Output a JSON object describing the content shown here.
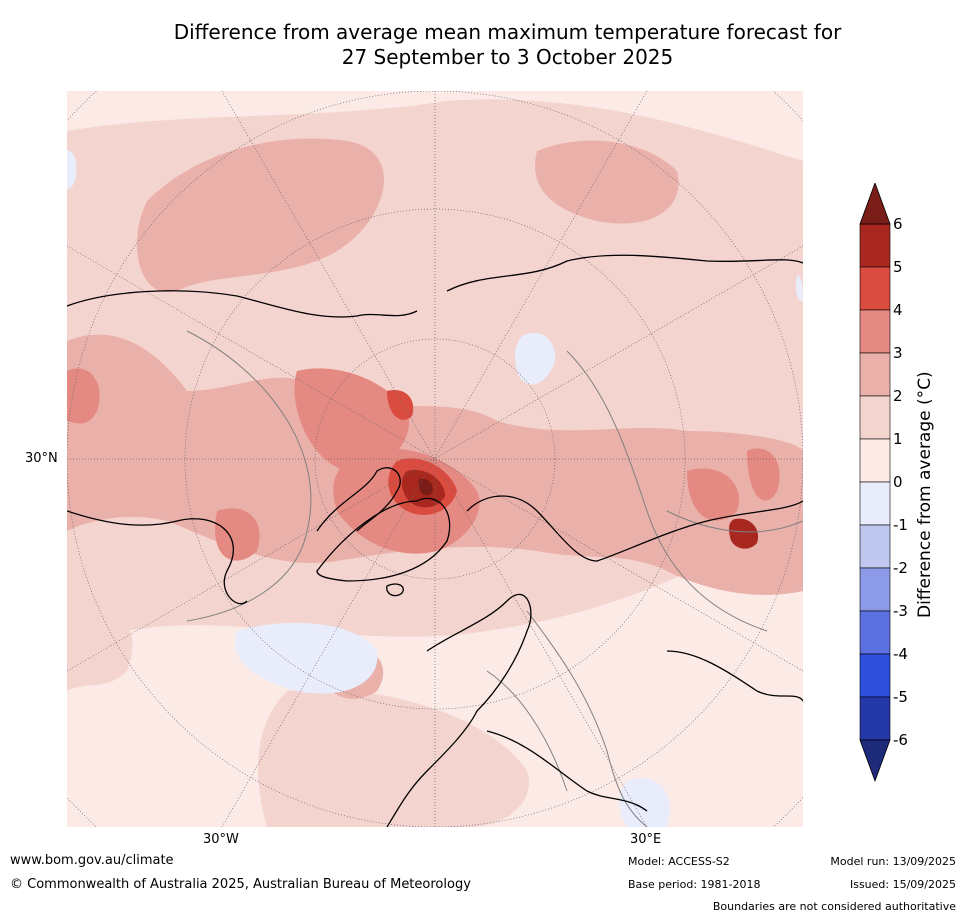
{
  "title": {
    "line1": "Difference from average mean maximum temperature forecast for",
    "line2": "27 September to 3 October 2025"
  },
  "map": {
    "projection": "north polar stereographic",
    "lat_labels": [
      "30°N"
    ],
    "lon_labels": [
      "30°W",
      "30°E"
    ],
    "background_anomaly_class": "0 to 1",
    "colors": {
      "background": "#fbeae6",
      "class_1_2": "#f4d4ce",
      "class_2_3": "#eab0aa",
      "class_3_4": "#e58a82",
      "class_4_5": "#d94c3f",
      "class_5_6": "#a8281f",
      "class_gt_6": "#7a1c18",
      "class_neg_0_1": "#e8ecfb",
      "coastline": "#000000",
      "borders": "#808080"
    }
  },
  "colorbar": {
    "label": "Difference from average (°C)",
    "ticks": [
      "6",
      "5",
      "4",
      "3",
      "2",
      "1",
      "0",
      "-1",
      "-2",
      "-3",
      "-4",
      "-5",
      "-6"
    ],
    "levels": [
      6,
      5,
      4,
      3,
      2,
      1,
      0,
      -1,
      -2,
      -3,
      -4,
      -5,
      -6
    ],
    "bands": [
      {
        "range": "5 to 6",
        "color": "#a8281f"
      },
      {
        "range": "4 to 5",
        "color": "#d94c3f"
      },
      {
        "range": "3 to 4",
        "color": "#e58a82"
      },
      {
        "range": "2 to 3",
        "color": "#eab0aa"
      },
      {
        "range": "1 to 2",
        "color": "#f4d4ce"
      },
      {
        "range": "0 to 1",
        "color": "#fbeae6"
      },
      {
        "range": "-1 to 0",
        "color": "#e8ecfb"
      },
      {
        "range": "-2 to -1",
        "color": "#c0c8f0"
      },
      {
        "range": "-3 to -2",
        "color": "#8c9ae8"
      },
      {
        "range": "-4 to -3",
        "color": "#5c70e0"
      },
      {
        "range": "-5 to -4",
        "color": "#2e4fdc"
      },
      {
        "range": "-6 to -5",
        "color": "#2538a8"
      }
    ],
    "over_color": "#7a1c18",
    "under_color": "#1e2a7a"
  },
  "footer": {
    "website": "www.bom.gov.au/climate",
    "copyright": "© Commonwealth of Australia 2025, Australian Bureau of Meteorology",
    "model": "Model: ACCESS-S2",
    "base_period": "Base period: 1981-2018",
    "model_run": "Model run: 13/09/2025",
    "issued": "Issued: 15/09/2025",
    "boundaries": "Boundaries are not considered authoritative"
  }
}
